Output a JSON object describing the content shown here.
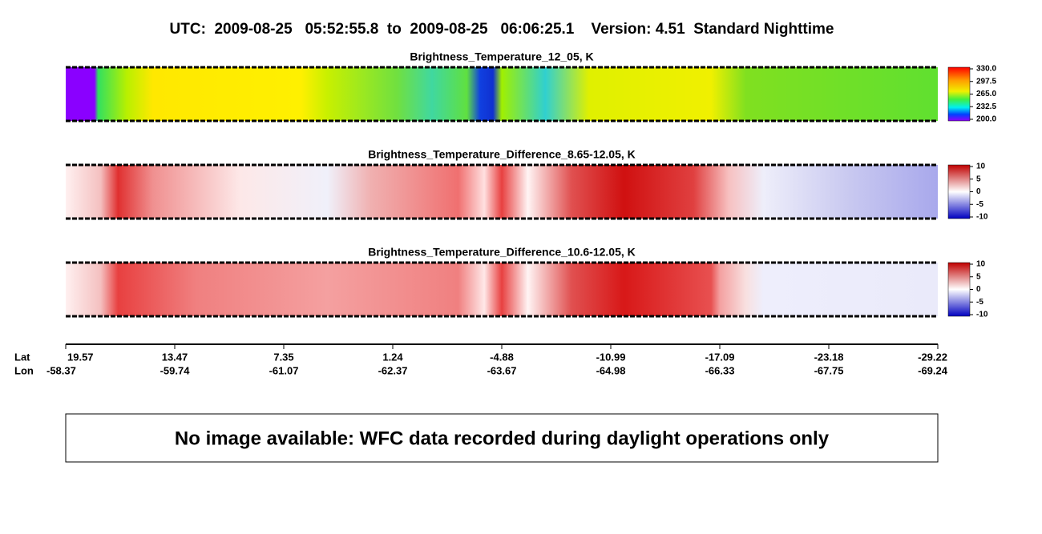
{
  "title": "UTC:  2009-08-25   05:52:55.8  to  2009-08-25   06:06:25.1    Version: 4.51  Standard Nighttime",
  "panels": [
    {
      "title": "Brightness_Temperature_12_05, K",
      "colorbar_ticks": [
        "330.0",
        "297.5",
        "265.0",
        "232.5",
        "200.0"
      ]
    },
    {
      "title": "Brightness_Temperature_Difference_8.65-12.05, K",
      "colorbar_ticks": [
        "10",
        "5",
        "0",
        "-5",
        "-10"
      ]
    },
    {
      "title": "Brightness_Temperature_Difference_10.6-12.05, K",
      "colorbar_ticks": [
        "10",
        "5",
        "0",
        "-5",
        "-10"
      ]
    }
  ],
  "axis": {
    "lat_label": "Lat",
    "lon_label": "Lon",
    "lat": [
      "19.57",
      "13.47",
      "7.35",
      "1.24",
      "-4.88",
      "-10.99",
      "-17.09",
      "-23.18",
      "-29.22"
    ],
    "lon": [
      "-58.37",
      "-59.74",
      "-61.07",
      "-62.37",
      "-63.67",
      "-64.98",
      "-66.33",
      "-67.75",
      "-69.24"
    ]
  },
  "notice": "No image available: WFC data recorded during daylight operations only"
}
